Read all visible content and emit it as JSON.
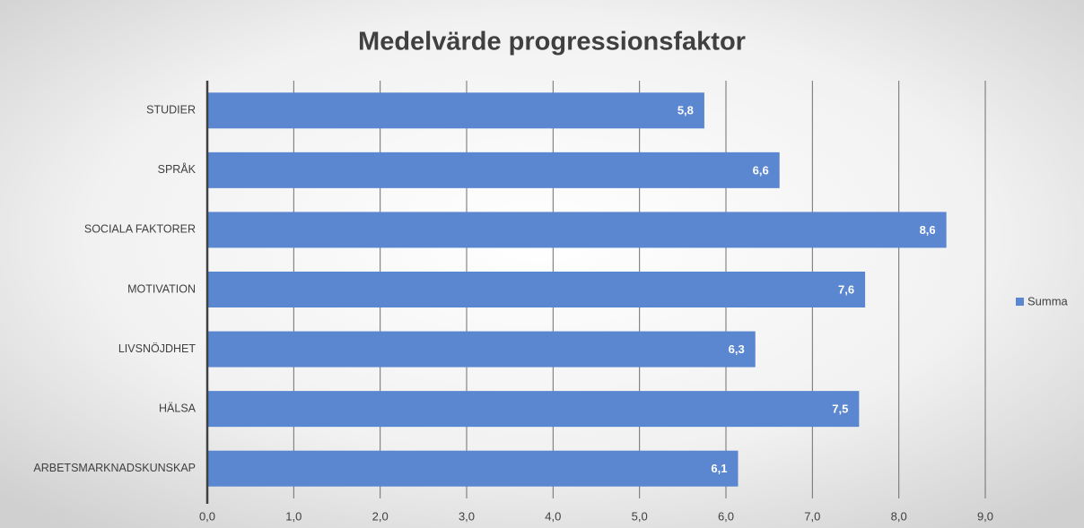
{
  "chart_data": {
    "type": "hbar",
    "title": "Medelvärde progressionsfaktor",
    "categories": [
      "STUDIER",
      "SPRÅK",
      "SOCIALA FAKTORER",
      "MOTIVATION",
      "LIVSNÖJDHET",
      "HÄLSA",
      "ARBETSMARKNADSKUNSKAP"
    ],
    "series": [
      {
        "name": "Summa",
        "color": "#5b86d0",
        "values": [
          5.75,
          6.62,
          8.55,
          7.61,
          6.34,
          7.54,
          6.14
        ],
        "value_labels": [
          "5,8",
          "6,6",
          "8,6",
          "7,6",
          "6,3",
          "7,5",
          "6,1"
        ]
      }
    ],
    "xlim": [
      0,
      9
    ],
    "xticks": [
      {
        "value": 0,
        "label": "0,0"
      },
      {
        "value": 1,
        "label": "1,0"
      },
      {
        "value": 2,
        "label": "2,0"
      },
      {
        "value": 3,
        "label": "3,0"
      },
      {
        "value": 4,
        "label": "4,0"
      },
      {
        "value": 5,
        "label": "5,0"
      },
      {
        "value": 6,
        "label": "6,0"
      },
      {
        "value": 7,
        "label": "7,0"
      },
      {
        "value": 8,
        "label": "8,0"
      },
      {
        "value": 9,
        "label": "9,0"
      }
    ],
    "grid": true,
    "legend": "right"
  }
}
